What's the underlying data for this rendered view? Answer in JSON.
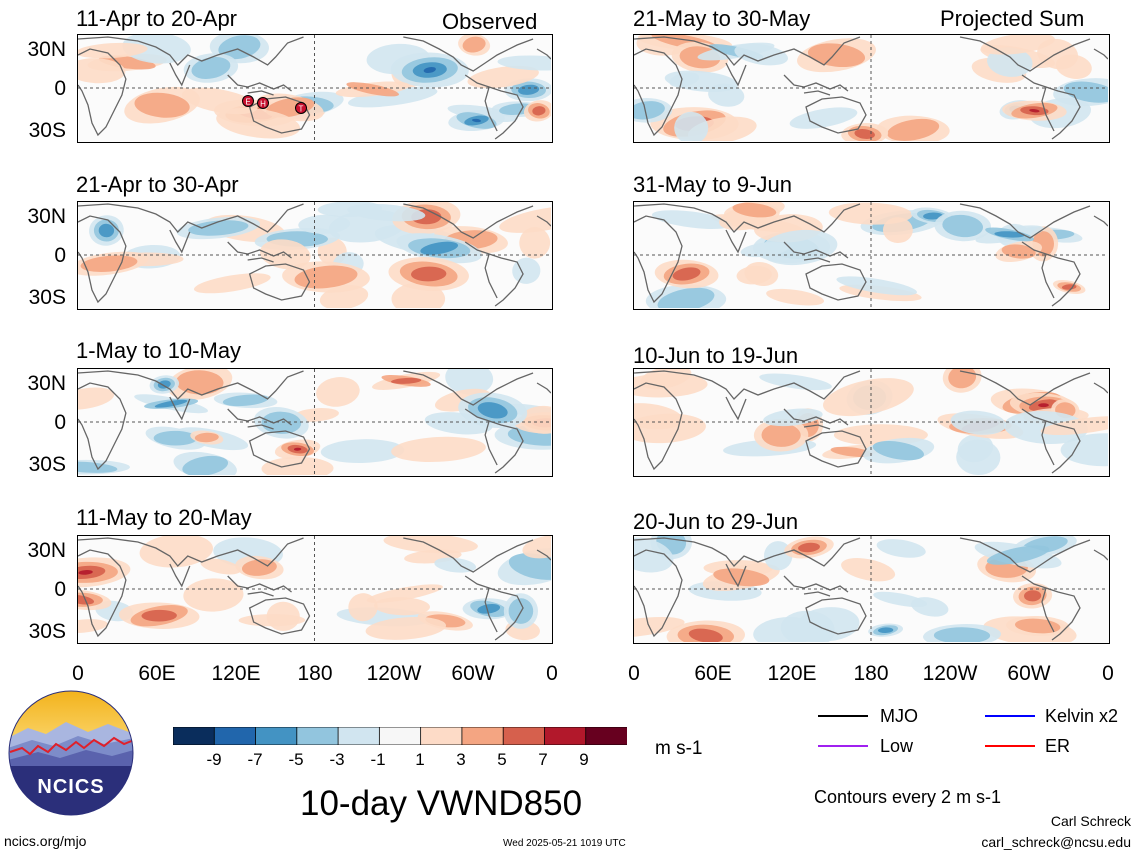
{
  "panels": {
    "left": [
      {
        "title": "11-Apr to 20-Apr",
        "tag": "Observed"
      },
      {
        "title": "21-Apr to 30-Apr",
        "tag": ""
      },
      {
        "title": "1-May to 10-May",
        "tag": ""
      },
      {
        "title": "11-May to 20-May",
        "tag": ""
      }
    ],
    "right": [
      {
        "title": "21-May to 30-May",
        "tag": "Projected Sum"
      },
      {
        "title": "31-May to 9-Jun",
        "tag": ""
      },
      {
        "title": "10-Jun to 19-Jun",
        "tag": ""
      },
      {
        "title": "20-Jun to 29-Jun",
        "tag": ""
      }
    ]
  },
  "lat_labels": [
    "30N",
    "0",
    "30S"
  ],
  "lon_labels": [
    "0",
    "60E",
    "120E",
    "180",
    "120W",
    "60W",
    "0"
  ],
  "storm_markers": [
    "E",
    "H",
    "T"
  ],
  "colorbar": {
    "labels": [
      "-9",
      "-7",
      "-5",
      "-3",
      "-1",
      "1",
      "3",
      "5",
      "7",
      "9"
    ],
    "colors": [
      "#0a2d5c",
      "#2166ac",
      "#4393c3",
      "#92c5de",
      "#d1e5f0",
      "#f7f7f7",
      "#fddbc7",
      "#f4a582",
      "#d6604d",
      "#b2182b",
      "#67001f"
    ],
    "units": "m s-1"
  },
  "legend": {
    "items": [
      {
        "label": "MJO",
        "color": "#000000"
      },
      {
        "label": "Kelvin x2",
        "color": "#0000ff"
      },
      {
        "label": "Low",
        "color": "#a020f0"
      },
      {
        "label": "ER",
        "color": "#ff0000"
      }
    ],
    "contours": "Contours every 2 m s-1"
  },
  "main_title": "10-day VWND850",
  "logo_text": "NCICS",
  "footer": {
    "website": "ncics.org/mjo",
    "timestamp": "Wed 2025-05-21 1019 UTC",
    "author": "Carl Schreck",
    "email": "carl_schreck@ncsu.edu"
  }
}
